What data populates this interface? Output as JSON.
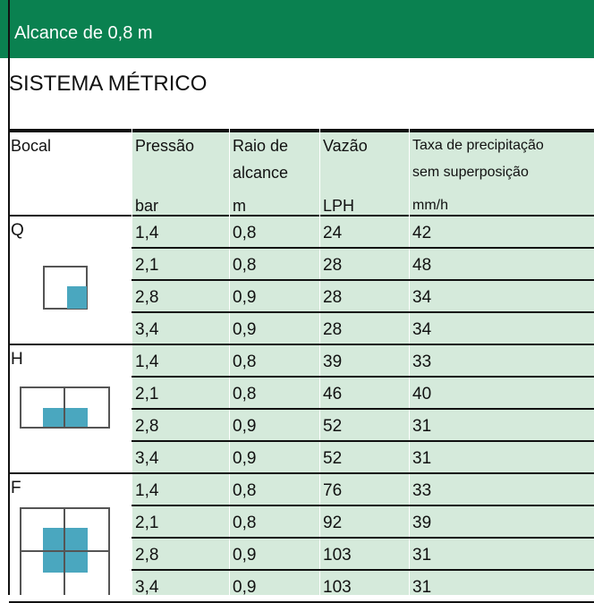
{
  "header": {
    "title": "Alcance de 0,8 m",
    "subtitle": "SISTEMA MÉTRICO"
  },
  "table": {
    "columns": [
      {
        "lines": [
          "Bocal"
        ],
        "unit": null
      },
      {
        "lines": [
          "Pressão"
        ],
        "unit": "bar"
      },
      {
        "lines": [
          "Raio de",
          "alcance"
        ],
        "unit": "m"
      },
      {
        "lines": [
          "Vazão"
        ],
        "unit": "LPH"
      },
      {
        "lines": [
          "Taxa de precipitação",
          "sem superposição"
        ],
        "unit": "mm/h"
      }
    ],
    "groups": [
      {
        "nozzle": "Q",
        "rows": [
          [
            "1,4",
            "0,8",
            "24",
            "42"
          ],
          [
            "2,1",
            "0,8",
            "28",
            "48"
          ],
          [
            "2,8",
            "0,9",
            "28",
            "34"
          ],
          [
            "3,4",
            "0,9",
            "28",
            "34"
          ]
        ]
      },
      {
        "nozzle": "H",
        "rows": [
          [
            "1,4",
            "0,8",
            "39",
            "33"
          ],
          [
            "2,1",
            "0,8",
            "46",
            "40"
          ],
          [
            "2,8",
            "0,9",
            "52",
            "31"
          ],
          [
            "3,4",
            "0,9",
            "52",
            "31"
          ]
        ]
      },
      {
        "nozzle": "F",
        "rows": [
          [
            "1,4",
            "0,8",
            "76",
            "33"
          ],
          [
            "2,1",
            "0,8",
            "92",
            "39"
          ],
          [
            "2,8",
            "0,9",
            "103",
            "31"
          ],
          [
            "3,4",
            "0,9",
            "103",
            "31"
          ]
        ]
      }
    ]
  }
}
